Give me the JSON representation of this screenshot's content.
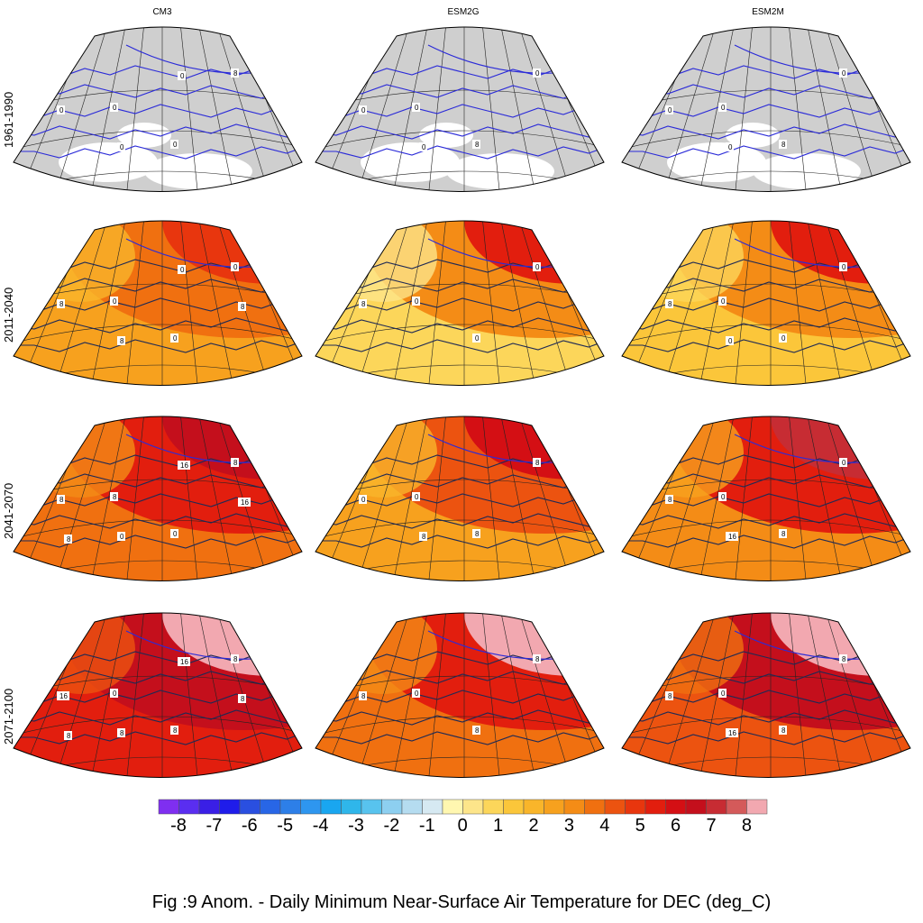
{
  "figure": {
    "columns": [
      "CM3",
      "ESM2G",
      "ESM2M"
    ],
    "rows": [
      "1961-1990",
      "2011-2040",
      "2041-2070",
      "2071-2100"
    ],
    "caption": "Fig :9  Anom.  - Daily Minimum Near-Surface Air Temperature for DEC (deg_C)"
  },
  "panels": [
    {
      "row": 0,
      "col": 0,
      "levels": [
        0.5
      ],
      "gradient": "none",
      "contour_labels": [
        "0",
        "0",
        "0",
        "8",
        "0",
        "0",
        "0"
      ]
    },
    {
      "row": 0,
      "col": 1,
      "levels": [
        0.5
      ],
      "gradient": "none",
      "contour_labels": [
        "0",
        "0",
        "8",
        "0",
        "0",
        "0"
      ]
    },
    {
      "row": 0,
      "col": 2,
      "levels": [
        0.5
      ],
      "gradient": "none",
      "contour_labels": [
        "0",
        "0",
        "8",
        "0",
        "0",
        "0"
      ]
    },
    {
      "row": 1,
      "col": 0,
      "levels": [
        2.5,
        3.5,
        4.5
      ],
      "gradient": "ne",
      "contour_labels": [
        "8",
        "0",
        "0",
        "0",
        "8",
        "8",
        "0",
        "8"
      ]
    },
    {
      "row": 1,
      "col": 1,
      "levels": [
        1.0,
        3.0,
        5.0
      ],
      "gradient": "ne",
      "contour_labels": [
        "8",
        "0",
        "0",
        "0",
        "8"
      ]
    },
    {
      "row": 1,
      "col": 2,
      "levels": [
        1.5,
        3.0,
        5.0
      ],
      "gradient": "ne",
      "contour_labels": [
        "8",
        "0",
        "0",
        "0",
        "8",
        "0"
      ]
    },
    {
      "row": 2,
      "col": 0,
      "levels": [
        3.5,
        5.0,
        6.5
      ],
      "gradient": "ne",
      "contour_labels": [
        "0",
        "8",
        "0",
        "8",
        "8",
        "0",
        "16",
        "16",
        "8"
      ]
    },
    {
      "row": 2,
      "col": 1,
      "levels": [
        2.5,
        4.0,
        6.0
      ],
      "gradient": "ne",
      "contour_labels": [
        "8",
        "0",
        "8",
        "8",
        "0",
        "8"
      ]
    },
    {
      "row": 2,
      "col": 2,
      "levels": [
        3.0,
        5.0,
        7.0
      ],
      "gradient": "ne",
      "contour_labels": [
        "0",
        "0",
        "8",
        "0",
        "8",
        "16"
      ]
    },
    {
      "row": 3,
      "col": 0,
      "levels": [
        5.0,
        6.5,
        8.0
      ],
      "gradient": "ne",
      "contour_labels": [
        "8",
        "0",
        "8",
        "8",
        "16",
        "8",
        "16",
        "8",
        "8"
      ]
    },
    {
      "row": 3,
      "col": 1,
      "levels": [
        3.5,
        5.5,
        8.0
      ],
      "gradient": "ne",
      "contour_labels": [
        "8",
        "0",
        "8",
        "8",
        "8"
      ]
    },
    {
      "row": 3,
      "col": 2,
      "levels": [
        4.0,
        6.5,
        8.0
      ],
      "gradient": "ne",
      "contour_labels": [
        "8",
        "0",
        "8",
        "8",
        "8",
        "16"
      ]
    }
  ],
  "colorbar": {
    "ticks": [
      "-8",
      "-7",
      "-6",
      "-5",
      "-4",
      "-3",
      "-2",
      "-1",
      "0",
      "1",
      "2",
      "3",
      "4",
      "5",
      "6",
      "7",
      "8"
    ],
    "colors": [
      "#7f2ff0",
      "#5a2ef0",
      "#3a1fe6",
      "#1f1cea",
      "#2a4fe0",
      "#2866e6",
      "#2d7fe8",
      "#2e96ef",
      "#19a6f0",
      "#2fb6ea",
      "#58c3ee",
      "#8dcff0",
      "#b5dcf0",
      "#d6e9f2",
      "#fff7b0",
      "#fde58a",
      "#fcd65a",
      "#fbc63a",
      "#f9b52a",
      "#f7a11e",
      "#f48c16",
      "#f07010",
      "#ec5310",
      "#e8360e",
      "#e21e0e",
      "#d40f14",
      "#c40f1c",
      "#c72c33",
      "#d45a5a",
      "#f2a8b0"
    ]
  },
  "style": {
    "land_gray": "#cfcfcf",
    "contour_blue": "#2b2bd8",
    "contour_dark": "#1f2a55",
    "frame": "#000000"
  }
}
